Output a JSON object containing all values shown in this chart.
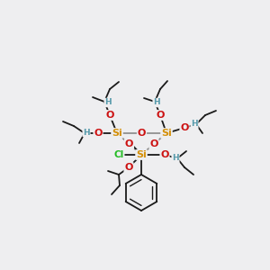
{
  "background_color": "#eeeef0",
  "figsize": [
    3.0,
    3.0
  ],
  "dpi": 100,
  "atom_colors": {
    "Si": "#d4900a",
    "O": "#cc1111",
    "Cl": "#22bb22",
    "H": "#5599aa",
    "C": "#1a1a1a"
  }
}
